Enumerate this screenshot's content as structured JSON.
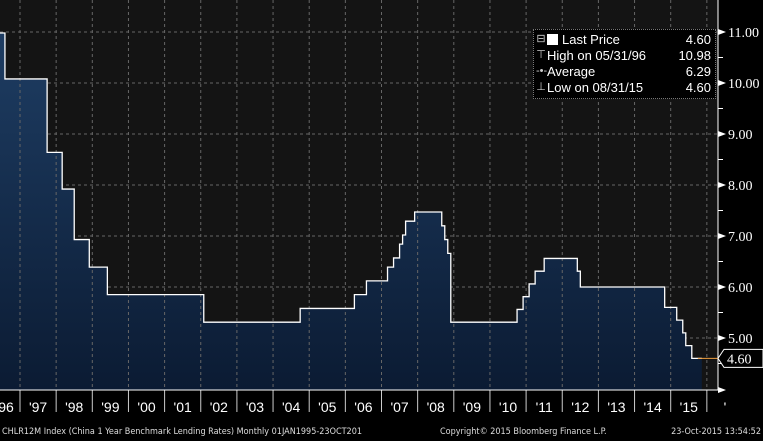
{
  "chart_data": {
    "type": "line",
    "style": "step-area",
    "ylim": [
      3.98,
      11.15
    ],
    "yticks": [
      "11.00",
      "10.00",
      "9.00",
      "8.00",
      "7.00",
      "6.00",
      "5.00"
    ],
    "xticks": [
      "96",
      "'97",
      "'98",
      "'99",
      "'00",
      "'01",
      "'02",
      "'03",
      "'04",
      "'05",
      "'06",
      "'07",
      "'08",
      "'09",
      "'10",
      "'11",
      "'12",
      "'13",
      "'14",
      "'15",
      "'"
    ],
    "last_value_label": "4.60",
    "series": [
      {
        "name": "Last Price",
        "steps": [
          [
            "1996-05",
            10.98
          ],
          [
            "1996-08",
            10.08
          ],
          [
            "1997-10",
            8.64
          ],
          [
            "1998-03",
            7.92
          ],
          [
            "1998-07",
            6.93
          ],
          [
            "1998-12",
            6.39
          ],
          [
            "1999-06",
            5.85
          ],
          [
            "2002-02",
            5.31
          ],
          [
            "2004-10",
            5.58
          ],
          [
            "2006-04",
            5.85
          ],
          [
            "2006-08",
            6.12
          ],
          [
            "2007-03",
            6.39
          ],
          [
            "2007-05",
            6.57
          ],
          [
            "2007-07",
            6.84
          ],
          [
            "2007-08",
            7.02
          ],
          [
            "2007-09",
            7.29
          ],
          [
            "2007-12",
            7.47
          ],
          [
            "2008-09",
            7.2
          ],
          [
            "2008-10",
            6.93
          ],
          [
            "2008-11",
            6.66
          ],
          [
            "2008-12",
            5.31
          ],
          [
            "2010-10",
            5.56
          ],
          [
            "2010-12",
            5.81
          ],
          [
            "2011-02",
            6.06
          ],
          [
            "2011-04",
            6.31
          ],
          [
            "2011-07",
            6.56
          ],
          [
            "2012-06",
            6.31
          ],
          [
            "2012-07",
            6.0
          ],
          [
            "2014-11",
            5.6
          ],
          [
            "2015-03",
            5.35
          ],
          [
            "2015-05",
            5.1
          ],
          [
            "2015-06",
            4.85
          ],
          [
            "2015-08",
            4.6
          ],
          [
            "2015-10",
            4.6
          ]
        ]
      }
    ],
    "legend": [
      {
        "icon": "square-icon",
        "label": "Last Price",
        "value": "4.60"
      },
      {
        "icon": "high-icon",
        "label": "High on 05/31/96",
        "value": "10.98"
      },
      {
        "icon": "average-icon",
        "label": "Average",
        "value": "6.29"
      },
      {
        "icon": "low-icon",
        "label": "Low on 08/31/15",
        "value": "4.60"
      }
    ]
  },
  "colors": {
    "fill_top": "#1e3d63",
    "fill_bottom": "#0b1b33",
    "line": "#ffffff",
    "last_marker": "#f0a040",
    "bg": "#141414"
  },
  "footer": {
    "left": "CHLR12M Index (China 1 Year Benchmark Lending Rates)  Monthly 01JAN1995-23OCT201",
    "center": "Copyright© 2015 Bloomberg Finance L.P.",
    "right": "23-Oct-2015 13:54:52"
  }
}
